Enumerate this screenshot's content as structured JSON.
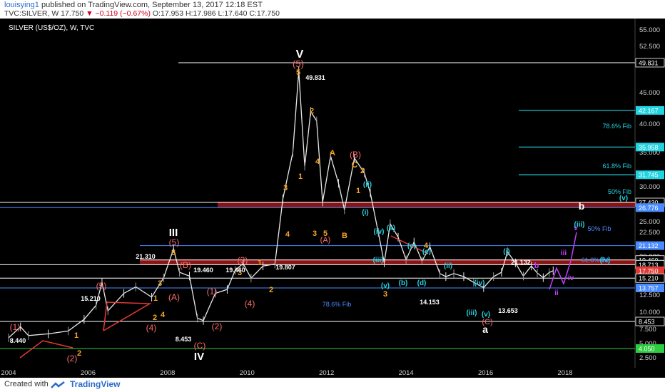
{
  "header": {
    "username": "louisying1",
    "published_text": "published on TradingView.com, September 13, 2017 12:18 EST",
    "symbol": "TVC:SILVER, W",
    "last": "17.750",
    "change": "▼ −0.119 (−0.67%)",
    "ohlc": "O:17.953 H:17.986 L:17.640 C:17.750"
  },
  "footer": {
    "created_label": "Created with",
    "brand": "TradingView"
  },
  "chart_data": {
    "type": "candlestick",
    "title": "SILVER (US$/OZ), W, TVC",
    "y_ticks": [
      "55.000",
      "52.500",
      "50.000",
      "45.000",
      "40.000",
      "35.000",
      "30.000",
      "25.000",
      "22.500",
      "20.000",
      "17.500",
      "15.000",
      "12.500",
      "10.000",
      "7.500",
      "5.000",
      "2.500"
    ],
    "x_ticks": [
      "2004",
      "2006",
      "2008",
      "2010",
      "2012",
      "2014",
      "2016",
      "2018"
    ],
    "price_labels": [
      {
        "text": "49.831",
        "color": "#ffffff"
      },
      {
        "text": "42.167",
        "color": "#22d3e0"
      },
      {
        "text": "35.958",
        "color": "#22d3e0"
      },
      {
        "text": "31.745",
        "color": "#22d3e0"
      },
      {
        "text": "27.430",
        "color": "#ffffff"
      },
      {
        "text": "26.776",
        "color": "#4a8cff"
      },
      {
        "text": "21.132",
        "color": "#4a8cff"
      },
      {
        "text": "19.460",
        "color": "#ffffff"
      },
      {
        "text": "18.774",
        "color": "#22d3e0"
      },
      {
        "text": "18.713",
        "color": "#ffffff"
      },
      {
        "text": "17.750",
        "color": "#e53935"
      },
      {
        "text": "15.210",
        "color": "#ffffff"
      },
      {
        "text": "13.757",
        "color": "#4a8cff"
      },
      {
        "text": "8.453",
        "color": "#ffffff"
      },
      {
        "text": "4.050",
        "color": "#2ecc40"
      }
    ],
    "series": [
      {
        "name": "SILVER (US$/OZ)",
        "path_points": [
          [
            2004.0,
            6.0
          ],
          [
            2004.3,
            7.8
          ],
          [
            2004.5,
            6.4
          ],
          [
            2005.0,
            6.7
          ],
          [
            2005.5,
            7.2
          ],
          [
            2005.9,
            8.8
          ],
          [
            2006.2,
            11.0
          ],
          [
            2006.35,
            14.5
          ],
          [
            2006.5,
            10.2
          ],
          [
            2006.9,
            12.8
          ],
          [
            2007.2,
            13.9
          ],
          [
            2007.6,
            12.2
          ],
          [
            2007.9,
            15.3
          ],
          [
            2008.15,
            20.8
          ],
          [
            2008.3,
            17.5
          ],
          [
            2008.55,
            16.0
          ],
          [
            2008.75,
            9.0
          ],
          [
            2008.9,
            8.6
          ],
          [
            2009.2,
            12.8
          ],
          [
            2009.5,
            13.5
          ],
          [
            2009.7,
            17.8
          ],
          [
            2009.9,
            18.9
          ],
          [
            2010.1,
            15.2
          ],
          [
            2010.4,
            18.5
          ],
          [
            2010.7,
            18.8
          ],
          [
            2010.9,
            28.0
          ],
          [
            2011.15,
            35.0
          ],
          [
            2011.3,
            48.5
          ],
          [
            2011.45,
            33.0
          ],
          [
            2011.6,
            42.0
          ],
          [
            2011.75,
            40.5
          ],
          [
            2011.9,
            27.5
          ],
          [
            2012.1,
            34.5
          ],
          [
            2012.3,
            30.5
          ],
          [
            2012.45,
            26.5
          ],
          [
            2012.7,
            34.2
          ],
          [
            2012.95,
            32.0
          ],
          [
            2013.1,
            29.0
          ],
          [
            2013.3,
            22.5
          ],
          [
            2013.45,
            19.0
          ],
          [
            2013.6,
            24.5
          ],
          [
            2013.8,
            22.0
          ],
          [
            2014.0,
            19.5
          ],
          [
            2014.2,
            21.5
          ],
          [
            2014.4,
            19.3
          ],
          [
            2014.6,
            21.0
          ],
          [
            2014.85,
            17.0
          ],
          [
            2015.0,
            15.8
          ],
          [
            2015.2,
            17.0
          ],
          [
            2015.45,
            15.8
          ],
          [
            2015.7,
            14.5
          ],
          [
            2015.95,
            13.8
          ],
          [
            2016.2,
            15.8
          ],
          [
            2016.4,
            17.5
          ],
          [
            2016.55,
            20.5
          ],
          [
            2016.75,
            19.0
          ],
          [
            2016.95,
            16.0
          ],
          [
            2017.15,
            18.5
          ],
          [
            2017.3,
            17.2
          ],
          [
            2017.45,
            15.4
          ],
          [
            2017.6,
            17.4
          ],
          [
            2017.7,
            17.75
          ]
        ]
      }
    ],
    "annotations": [
      "V",
      "(5)",
      "5",
      "2",
      "4",
      "3",
      "1",
      "2",
      "3",
      "4",
      "5",
      "A",
      "(A)",
      "B",
      "(B)",
      "C",
      "2",
      "1",
      "(i)",
      "(ii)",
      "(iv)",
      "(a)",
      "(c)",
      "(e)",
      "(iii)",
      "(v)",
      "3",
      "(b)",
      "(d)",
      "4",
      "(ii)",
      "(iv)",
      "(i)",
      "(iii)",
      "(v)",
      "(C)",
      "a",
      "iv",
      "b",
      "(iii)",
      "(iv)",
      "(v)",
      "iii",
      "iv",
      "v",
      "ii",
      "i",
      "iv",
      "ii",
      "III",
      "(5)",
      "5",
      "(B)",
      "(A)",
      "(3)",
      "3",
      "1",
      "2",
      "(4)",
      "(1)",
      "(2)",
      "(C)",
      "IV",
      "4",
      "3",
      "(5)",
      "2",
      "(4)",
      "1",
      "2",
      "(2)",
      "(1)",
      "1",
      "2",
      "(2)",
      "(1)",
      "21.310",
      "19.460",
      "19.460",
      "19.807",
      "15.210",
      "8.440",
      "8.453",
      "14.153",
      "13.653",
      "21.132",
      "78.6% Fib",
      "78.6% Fib",
      "61.8% Fib",
      "50% Fib",
      "61.8% Fib",
      "50% Fib",
      "49.831"
    ]
  }
}
